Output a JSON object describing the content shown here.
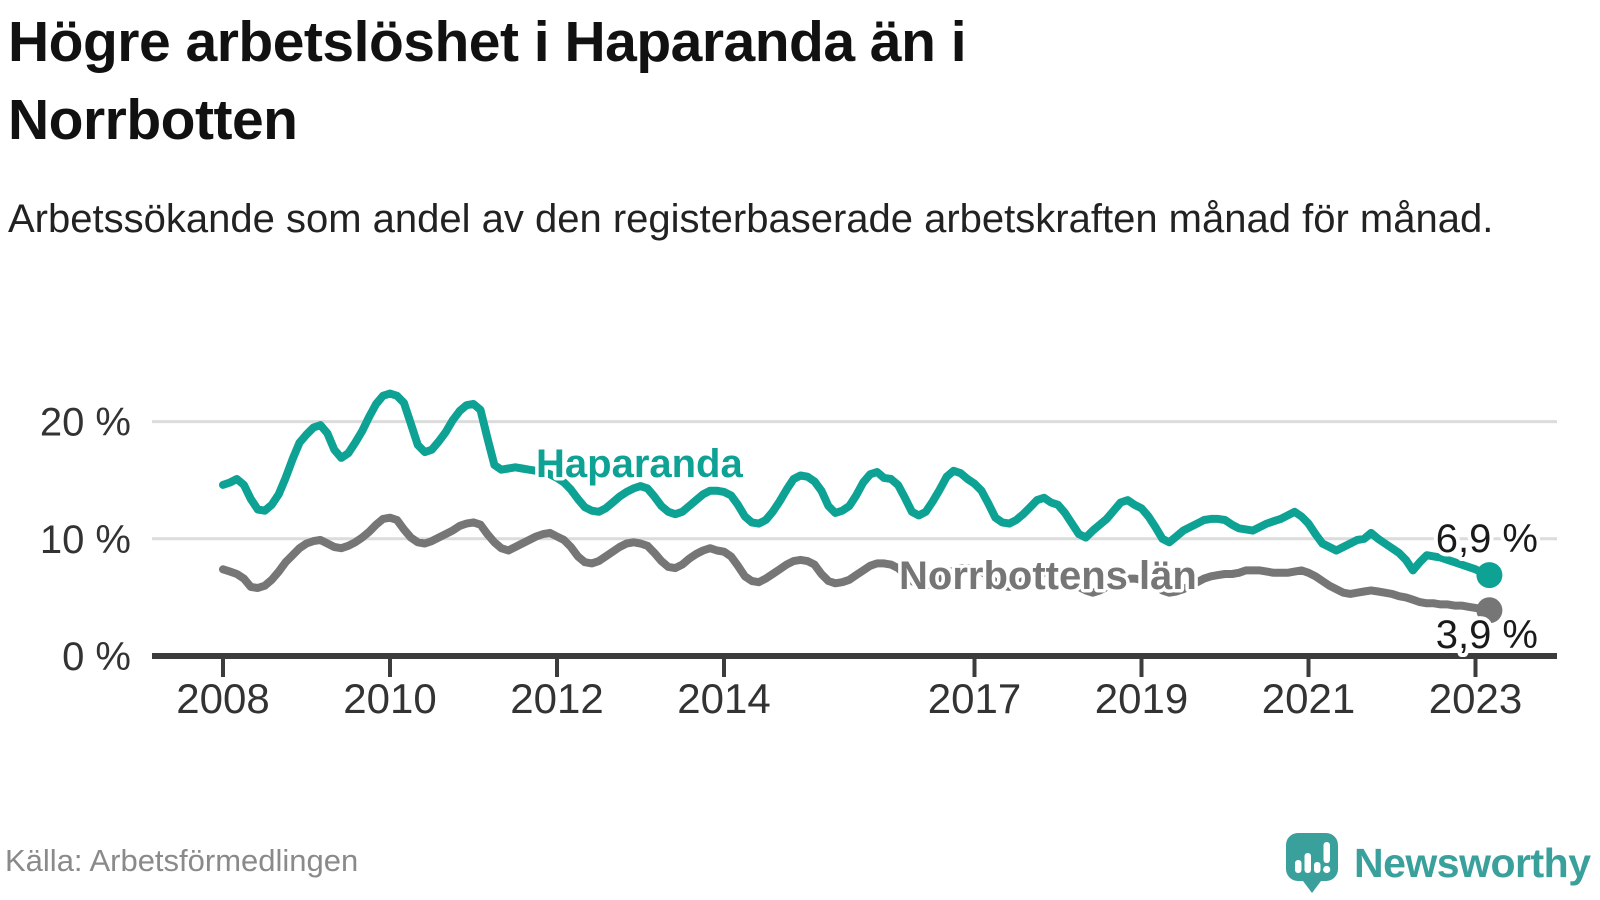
{
  "header": {
    "title": "Högre arbetslöshet i Haparanda än i\nNorrbotten",
    "subtitle": "Arbetssökande som andel av den registerbaserade arbetskraften månad för månad."
  },
  "footer": {
    "source": "Källa: Arbetsförmedlingen",
    "brand_name": "Newsworthy",
    "brand_icon": "newsworthy-speech-bubble-bar-chart-icon"
  },
  "colors": {
    "haparanda_line": "#0da294",
    "norrbotten_line": "#767676",
    "grid": "#dcdcdc",
    "axis": "#3c3c3c",
    "value_label_text": "#1a1a1a",
    "brand_teal": "#3aa09c",
    "muted_text": "#8a8a8a"
  },
  "chart_data": {
    "type": "line",
    "title": "Högre arbetslöshet i Haparanda än i Norrbotten",
    "subtitle": "Arbetssökande som andel av den registerbaserade arbetskraften månad för månad.",
    "unit": "%",
    "x_start": {
      "year": 2008,
      "month": 1
    },
    "x_end": {
      "year": 2023,
      "month": 3
    },
    "frequency": "monthly",
    "ylim": [
      0,
      23.5
    ],
    "grid": "horizontal-only",
    "legend": "inline-labels",
    "y_ticks": [
      {
        "value": 0,
        "label": "0 %"
      },
      {
        "value": 10,
        "label": "10 %"
      },
      {
        "value": 20,
        "label": "20 %"
      }
    ],
    "x_ticks": [
      {
        "value": 2008,
        "label": "2008"
      },
      {
        "value": 2010,
        "label": "2010"
      },
      {
        "value": 2012,
        "label": "2012"
      },
      {
        "value": 2014,
        "label": "2014"
      },
      {
        "value": 2017,
        "label": "2017"
      },
      {
        "value": 2019,
        "label": "2019"
      },
      {
        "value": 2021,
        "label": "2021"
      },
      {
        "value": 2023,
        "label": "2023"
      }
    ],
    "series": [
      {
        "name": "Haparanda",
        "color": "#0da294",
        "end_label": "6,9 %",
        "end_value": 6.9,
        "values": [
          14.6,
          14.8,
          15.1,
          14.6,
          13.4,
          12.5,
          12.4,
          12.9,
          13.8,
          15.2,
          16.8,
          18.2,
          18.9,
          19.5,
          19.7,
          19.0,
          17.6,
          16.9,
          17.3,
          18.2,
          19.2,
          20.4,
          21.5,
          22.2,
          22.4,
          22.2,
          21.6,
          19.8,
          18.0,
          17.4,
          17.6,
          18.3,
          19.1,
          20.1,
          20.9,
          21.4,
          21.5,
          21.0,
          18.6,
          16.3,
          15.9,
          16.0,
          16.1,
          16.0,
          15.9,
          15.8,
          15.7,
          15.5,
          15.2,
          14.8,
          14.2,
          13.4,
          12.7,
          12.4,
          12.3,
          12.6,
          13.1,
          13.6,
          14.0,
          14.3,
          14.5,
          14.3,
          13.6,
          12.8,
          12.3,
          12.1,
          12.3,
          12.8,
          13.3,
          13.8,
          14.1,
          14.1,
          14.0,
          13.7,
          12.9,
          11.9,
          11.4,
          11.3,
          11.6,
          12.3,
          13.2,
          14.2,
          15.1,
          15.4,
          15.3,
          14.9,
          14.1,
          12.8,
          12.2,
          12.4,
          12.8,
          13.7,
          14.8,
          15.5,
          15.7,
          15.2,
          15.1,
          14.6,
          13.5,
          12.3,
          12.0,
          12.3,
          13.2,
          14.2,
          15.3,
          15.8,
          15.6,
          15.1,
          14.7,
          14.1,
          13.0,
          11.8,
          11.4,
          11.3,
          11.6,
          12.1,
          12.7,
          13.3,
          13.5,
          13.1,
          12.9,
          12.2,
          11.3,
          10.4,
          10.1,
          10.7,
          11.2,
          11.7,
          12.4,
          13.1,
          13.3,
          12.9,
          12.6,
          11.9,
          11.0,
          10.0,
          9.7,
          10.2,
          10.7,
          11.0,
          11.3,
          11.6,
          11.7,
          11.7,
          11.6,
          11.2,
          10.9,
          10.8,
          10.7,
          11.0,
          11.3,
          11.5,
          11.7,
          12.0,
          12.3,
          11.9,
          11.3,
          10.4,
          9.6,
          9.3,
          9.0,
          9.3,
          9.6,
          9.9,
          10.0,
          10.5,
          10.0,
          9.6,
          9.2,
          8.8,
          8.2,
          7.3,
          8.0,
          8.6,
          8.5,
          8.4,
          8.2,
          8.0,
          7.8,
          7.6,
          7.4,
          7.1,
          6.9
        ]
      },
      {
        "name": "Norrbottens län",
        "color": "#767676",
        "end_label": "3,9 %",
        "end_value": 3.9,
        "values": [
          7.4,
          7.2,
          7.0,
          6.6,
          5.9,
          5.8,
          6.0,
          6.5,
          7.2,
          8.0,
          8.6,
          9.2,
          9.6,
          9.8,
          9.9,
          9.6,
          9.3,
          9.2,
          9.4,
          9.7,
          10.1,
          10.6,
          11.2,
          11.7,
          11.8,
          11.6,
          10.8,
          10.1,
          9.7,
          9.6,
          9.8,
          10.1,
          10.4,
          10.7,
          11.1,
          11.3,
          11.4,
          11.2,
          10.4,
          9.7,
          9.2,
          9.0,
          9.3,
          9.6,
          9.9,
          10.2,
          10.4,
          10.5,
          10.2,
          9.9,
          9.3,
          8.5,
          8.0,
          7.9,
          8.1,
          8.5,
          8.9,
          9.3,
          9.6,
          9.7,
          9.6,
          9.4,
          8.8,
          8.1,
          7.6,
          7.5,
          7.8,
          8.3,
          8.7,
          9.0,
          9.2,
          9.0,
          8.9,
          8.5,
          7.7,
          6.8,
          6.4,
          6.3,
          6.6,
          7.0,
          7.4,
          7.8,
          8.1,
          8.2,
          8.1,
          7.8,
          7.0,
          6.4,
          6.2,
          6.3,
          6.5,
          6.9,
          7.3,
          7.7,
          7.9,
          7.9,
          7.8,
          7.5,
          7.0,
          6.4,
          6.1,
          6.0,
          6.2,
          6.6,
          7.0,
          7.3,
          7.5,
          7.5,
          7.4,
          7.2,
          6.8,
          6.3,
          6.0,
          5.9,
          6.1,
          6.4,
          6.7,
          7.0,
          7.1,
          7.1,
          7.0,
          6.8,
          6.4,
          5.9,
          5.6,
          5.4,
          5.6,
          5.9,
          6.2,
          6.5,
          6.6,
          6.6,
          6.5,
          6.3,
          6.0,
          5.6,
          5.4,
          5.5,
          5.7,
          6.0,
          6.3,
          6.6,
          6.8,
          6.9,
          7.0,
          7.0,
          7.1,
          7.3,
          7.3,
          7.3,
          7.2,
          7.1,
          7.1,
          7.1,
          7.2,
          7.3,
          7.1,
          6.8,
          6.4,
          6.0,
          5.7,
          5.4,
          5.3,
          5.4,
          5.5,
          5.6,
          5.5,
          5.4,
          5.3,
          5.1,
          5.0,
          4.8,
          4.6,
          4.5,
          4.5,
          4.4,
          4.4,
          4.3,
          4.3,
          4.2,
          4.1,
          4.0,
          3.9
        ]
      }
    ]
  }
}
